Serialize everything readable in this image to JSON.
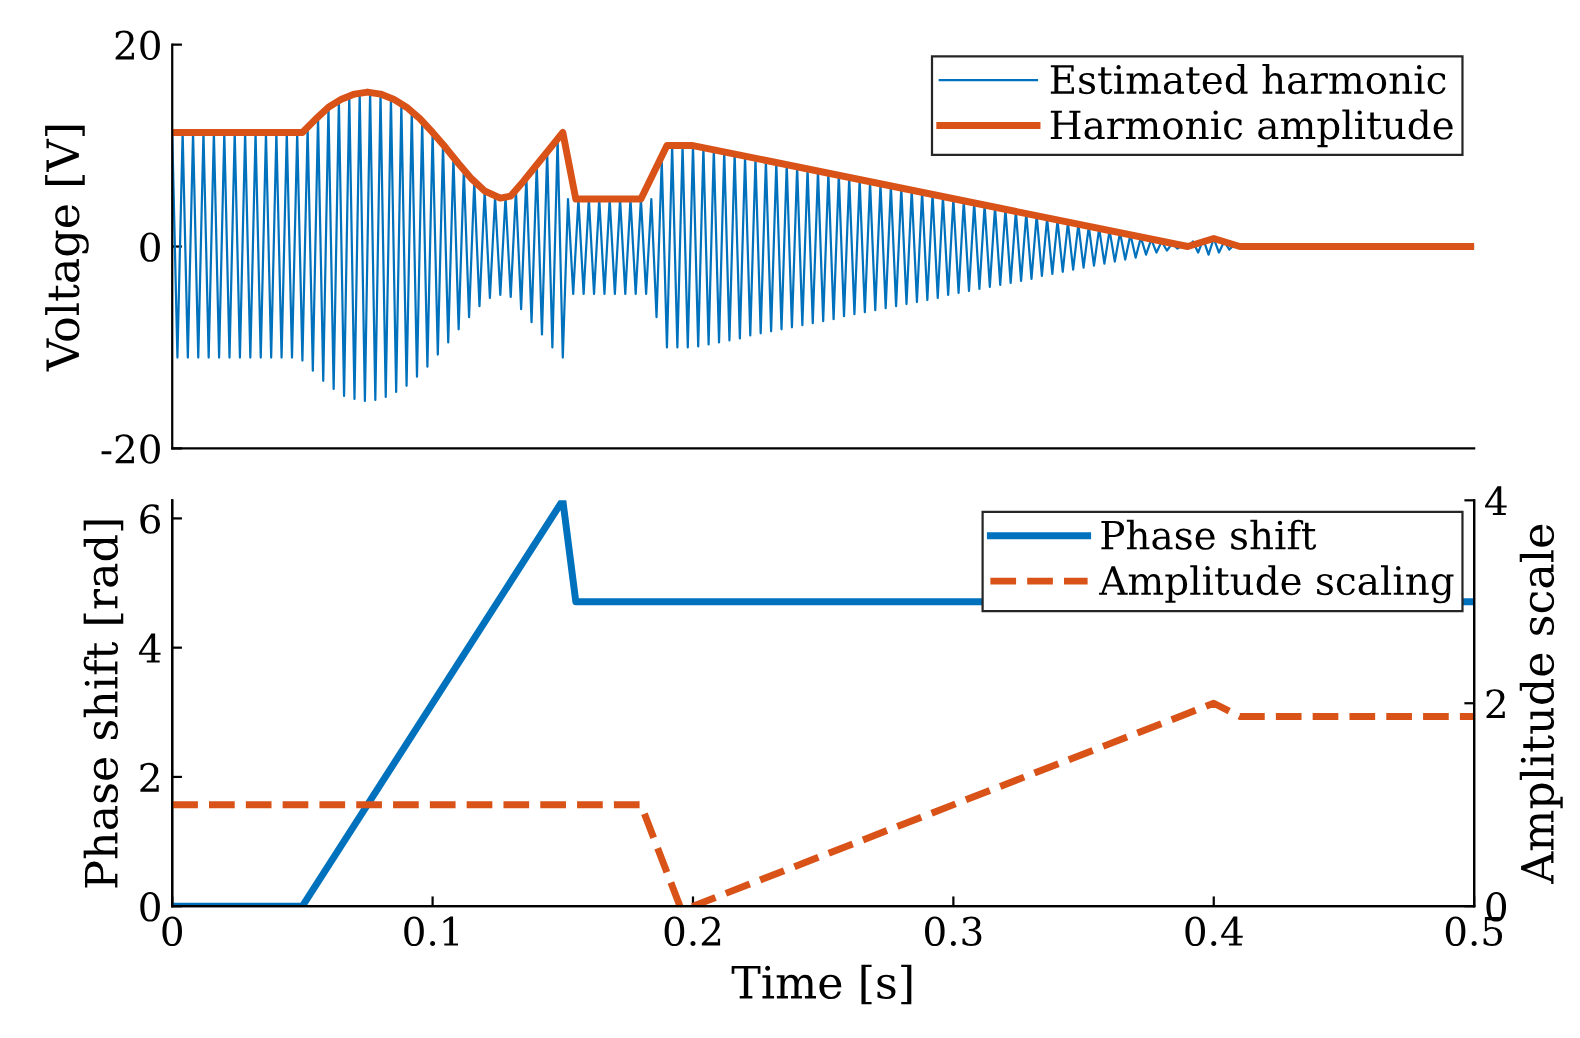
{
  "chart_data": [
    {
      "type": "line",
      "ylabel": "Voltage [V]",
      "xlim": [
        0,
        0.5
      ],
      "ylim": [
        -20,
        20
      ],
      "yticks": [
        -20,
        0,
        20
      ],
      "tick_labels": "y",
      "legend": "top right",
      "grid": false,
      "series": [
        {
          "name": "Estimated harmonic",
          "color": "#0072bd",
          "line_style": "solid",
          "x": [
            0,
            0.002,
            0.004,
            0.006,
            0.008,
            0.01,
            0.012,
            0.014,
            0.016,
            0.018,
            0.02,
            0.022,
            0.024,
            0.026,
            0.028,
            0.03,
            0.032,
            0.034,
            0.036,
            0.038,
            0.04,
            0.042,
            0.044,
            0.046,
            0.048,
            0.05,
            0.052,
            0.054,
            0.056,
            0.058,
            0.06,
            0.062,
            0.064,
            0.066,
            0.068,
            0.07,
            0.072,
            0.074,
            0.076,
            0.078,
            0.08,
            0.082,
            0.084,
            0.086,
            0.088,
            0.09,
            0.092,
            0.094,
            0.096,
            0.098,
            0.1,
            0.102,
            0.104,
            0.106,
            0.108,
            0.11,
            0.112,
            0.114,
            0.116,
            0.118,
            0.12,
            0.122,
            0.124,
            0.126,
            0.128,
            0.13,
            0.132,
            0.134,
            0.136,
            0.138,
            0.14,
            0.142,
            0.144,
            0.146,
            0.148,
            0.15,
            0.152,
            0.154,
            0.156,
            0.158,
            0.16,
            0.162,
            0.164,
            0.166,
            0.168,
            0.17,
            0.172,
            0.174,
            0.176,
            0.178,
            0.18,
            0.182,
            0.184,
            0.186,
            0.188,
            0.19,
            0.192,
            0.194,
            0.196,
            0.198,
            0.2,
            0.202,
            0.204,
            0.206,
            0.208,
            0.21,
            0.212,
            0.214,
            0.216,
            0.218,
            0.22,
            0.222,
            0.224,
            0.226,
            0.228,
            0.23,
            0.232,
            0.234,
            0.236,
            0.238,
            0.24,
            0.242,
            0.244,
            0.246,
            0.248,
            0.25,
            0.252,
            0.254,
            0.256,
            0.258,
            0.26,
            0.262,
            0.264,
            0.266,
            0.268,
            0.27,
            0.272,
            0.274,
            0.276,
            0.278,
            0.28,
            0.282,
            0.284,
            0.286,
            0.288,
            0.29,
            0.292,
            0.294,
            0.296,
            0.298,
            0.3,
            0.302,
            0.304,
            0.306,
            0.308,
            0.31,
            0.312,
            0.314,
            0.316,
            0.318,
            0.32,
            0.322,
            0.324,
            0.326,
            0.328,
            0.33,
            0.332,
            0.334,
            0.336,
            0.338,
            0.34,
            0.342,
            0.344,
            0.346,
            0.348,
            0.35,
            0.352,
            0.354,
            0.356,
            0.358,
            0.36,
            0.362,
            0.364,
            0.366,
            0.368,
            0.37,
            0.372,
            0.374,
            0.376,
            0.378,
            0.38,
            0.382,
            0.384,
            0.386,
            0.388,
            0.39,
            0.392,
            0.394,
            0.396,
            0.398,
            0.4,
            0.402,
            0.404,
            0.406,
            0.408,
            0.41,
            0.5
          ],
          "values": [
            11.3,
            -11,
            11.3,
            -11,
            11.3,
            -11,
            11.3,
            -11,
            11.3,
            -11,
            11.3,
            -11,
            11.3,
            -11,
            11.3,
            -11,
            11.3,
            -11,
            11.3,
            -11,
            11.3,
            -11,
            11.3,
            -11,
            11.3,
            -11.3,
            11.8,
            -12.3,
            12.8,
            -13.3,
            13.8,
            -14.1,
            14.5,
            -14.8,
            15,
            -15.1,
            15.2,
            -15.3,
            15.3,
            -15.2,
            15.1,
            -14.9,
            14.7,
            -14.4,
            14.1,
            -13.8,
            13.4,
            -12.9,
            12.4,
            -11.9,
            11.3,
            -10.7,
            10.1,
            -9.5,
            8.8,
            -8.2,
            7.6,
            -7,
            6.4,
            -5.9,
            5.5,
            -5.1,
            4.9,
            -4.8,
            4.9,
            -5,
            5.6,
            -6.2,
            6.9,
            -7.5,
            8.1,
            -8.7,
            9.4,
            -10,
            10.7,
            -11,
            4.7,
            -4.7,
            4.7,
            -4.7,
            4.7,
            -4.7,
            4.7,
            -4.7,
            4.7,
            -4.7,
            4.7,
            -4.7,
            4.7,
            -4.7,
            4.7,
            -4.7,
            4.7,
            -7,
            8.5,
            -10,
            10,
            -10,
            10,
            -10,
            10,
            -9.9,
            9.8,
            -9.7,
            9.6,
            -9.5,
            9.4,
            -9.3,
            9.2,
            -9.1,
            8.9,
            -8.8,
            8.7,
            -8.6,
            8.5,
            -8.4,
            8.3,
            -8.2,
            8.1,
            -8,
            7.9,
            -7.8,
            7.7,
            -7.6,
            7.5,
            -7.4,
            7.3,
            -7.2,
            7.1,
            -6.9,
            6.8,
            -6.7,
            6.6,
            -6.5,
            6.4,
            -6.3,
            6.2,
            -6.1,
            6,
            -5.9,
            5.8,
            -5.7,
            5.6,
            -5.5,
            5.4,
            -5.3,
            5.2,
            -5.1,
            4.9,
            -4.8,
            4.7,
            -4.6,
            4.5,
            -4.4,
            4.3,
            -4.2,
            4.1,
            -4,
            3.9,
            -3.8,
            3.7,
            -3.6,
            3.5,
            -3.4,
            3.3,
            -3.2,
            3.1,
            -2.9,
            2.8,
            -2.7,
            2.6,
            -2.5,
            2.4,
            -2.3,
            2.2,
            -2.1,
            2,
            -1.9,
            1.8,
            -1.7,
            1.6,
            -1.5,
            1.4,
            -1.3,
            1.2,
            -1.1,
            0.9,
            -0.8,
            0.7,
            -0.6,
            0.5,
            -0.4,
            0.3,
            -0.2,
            0.1,
            -0.2,
            0.5,
            -0.6,
            0.7,
            -0.8,
            0.8,
            -0.6,
            0.5,
            -0.3,
            0.2,
            0,
            0
          ]
        },
        {
          "name": "Harmonic amplitude",
          "color": "#d95319",
          "line_style": "solid",
          "x": [
            0,
            0.05,
            0.055,
            0.06,
            0.065,
            0.07,
            0.075,
            0.08,
            0.085,
            0.09,
            0.095,
            0.1,
            0.105,
            0.11,
            0.115,
            0.12,
            0.126,
            0.13,
            0.135,
            0.14,
            0.145,
            0.15,
            0.155,
            0.18,
            0.19,
            0.2,
            0.39,
            0.4,
            0.41,
            0.5
          ],
          "values": [
            11.3,
            11.3,
            12.6,
            13.8,
            14.6,
            15.1,
            15.3,
            15.1,
            14.6,
            13.8,
            12.7,
            11.3,
            9.8,
            8.2,
            6.7,
            5.5,
            4.8,
            5,
            6.5,
            8.1,
            9.7,
            11.3,
            4.7,
            4.7,
            10,
            10,
            0,
            0.8,
            0,
            0
          ]
        }
      ]
    },
    {
      "type": "line",
      "xlabel": "Time [s]",
      "ylabel": "Phase shift [rad]",
      "y2label": "Amplitude scale",
      "xlim": [
        0,
        0.5
      ],
      "xticks": [
        0,
        0.1,
        0.2,
        0.3,
        0.4,
        0.5
      ],
      "ylim": [
        0,
        6.28
      ],
      "yticks": [
        0,
        2,
        4,
        6
      ],
      "y2lim": [
        0,
        4
      ],
      "y2ticks": [
        0,
        2,
        4
      ],
      "legend": "top right",
      "grid": false,
      "series": [
        {
          "name": "Phase shift",
          "color": "#0072bd",
          "line_style": "solid",
          "x": [
            0,
            0.05,
            0.15,
            0.155,
            0.5
          ],
          "values": [
            0,
            0,
            6.28,
            4.71,
            4.71
          ]
        },
        {
          "name": "Amplitude scaling",
          "color": "#d95319",
          "line_style": "dashed",
          "axis": "y2",
          "x": [
            0,
            0.18,
            0.195,
            0.2,
            0.4,
            0.41,
            0.5
          ],
          "values": [
            1,
            1,
            0,
            0,
            2,
            1.87,
            1.87
          ]
        }
      ]
    }
  ]
}
